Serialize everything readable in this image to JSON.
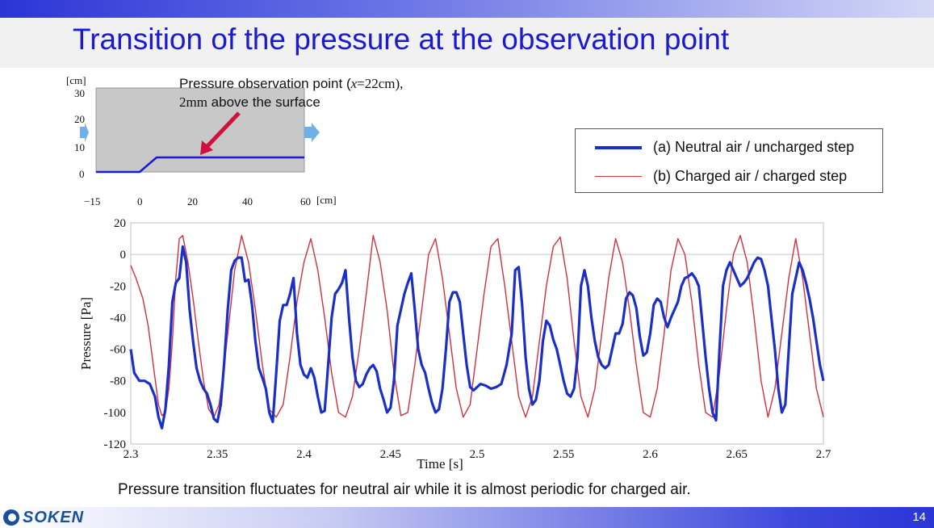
{
  "slide": {
    "title": "Transition of the pressure at the observation point",
    "caption": "Pressure transition fluctuates for neutral air while it is almost periodic for charged air.",
    "page_number": "14",
    "logo_text": "SOKEN"
  },
  "inset": {
    "unit_top": "[cm]",
    "unit_right": "[cm]",
    "y_ticks": [
      "30",
      "20",
      "10",
      "0"
    ],
    "x_ticks": [
      "−15",
      "0",
      "20",
      "40",
      "60"
    ],
    "annotation_line1_a": "Pressure observation point (",
    "annotation_line1_x": "x",
    "annotation_line1_b": "=22cm),",
    "annotation_line2_a": "2mm",
    "annotation_line2_b": " above the surface",
    "colors": {
      "domain": "#c8c8c8",
      "surface": "#1a1ad0",
      "arrow": "#d01040",
      "flow": "#6fb0e8"
    }
  },
  "legend": {
    "items": [
      {
        "label": "(a) Neutral air / uncharged step",
        "color": "#1a2fc8"
      },
      {
        "label": "(b) Charged air / charged step",
        "color": "#d03040"
      }
    ]
  },
  "chart_data": {
    "type": "line",
    "xlabel": "Time [s]",
    "ylabel": "Pressure [Pa]",
    "xlim": [
      2.3,
      2.7
    ],
    "ylim": [
      -120,
      20
    ],
    "x_ticks": [
      "2.3",
      "2.35",
      "2.4",
      "2.45",
      "2.5",
      "2.55",
      "2.6",
      "2.65",
      "2.7"
    ],
    "y_ticks": [
      "20",
      "0",
      "-20",
      "-40",
      "-60",
      "-80",
      "-100",
      "-120"
    ],
    "grid": "horizontal line at 0",
    "series": [
      {
        "name": "(a) Neutral air / uncharged step",
        "color": "#1a2fc8",
        "x": [
          2.3,
          2.302,
          2.305,
          2.308,
          2.311,
          2.314,
          2.316,
          2.318,
          2.32,
          2.322,
          2.324,
          2.326,
          2.328,
          2.33,
          2.332,
          2.334,
          2.336,
          2.338,
          2.34,
          2.342,
          2.344,
          2.346,
          2.348,
          2.35,
          2.352,
          2.354,
          2.356,
          2.358,
          2.36,
          2.362,
          2.364,
          2.366,
          2.368,
          2.37,
          2.372,
          2.374,
          2.376,
          2.378,
          2.38,
          2.382,
          2.384,
          2.386,
          2.388,
          2.39,
          2.392,
          2.394,
          2.396,
          2.398,
          2.4,
          2.402,
          2.404,
          2.406,
          2.408,
          2.41,
          2.412,
          2.414,
          2.416,
          2.418,
          2.42,
          2.422,
          2.424,
          2.426,
          2.428,
          2.43,
          2.432,
          2.434,
          2.436,
          2.438,
          2.44,
          2.442,
          2.444,
          2.446,
          2.448,
          2.45,
          2.452,
          2.454,
          2.456,
          2.458,
          2.46,
          2.462,
          2.464,
          2.466,
          2.468,
          2.47,
          2.472,
          2.474,
          2.476,
          2.478,
          2.48,
          2.482,
          2.484,
          2.486,
          2.488,
          2.49,
          2.492,
          2.494,
          2.496,
          2.498,
          2.5,
          2.502,
          2.505,
          2.508,
          2.511,
          2.514,
          2.517,
          2.52,
          2.522,
          2.524,
          2.526,
          2.528,
          2.53,
          2.532,
          2.534,
          2.536,
          2.538,
          2.54,
          2.542,
          2.544,
          2.546,
          2.548,
          2.55,
          2.552,
          2.554,
          2.556,
          2.558,
          2.56,
          2.562,
          2.564,
          2.566,
          2.568,
          2.57,
          2.572,
          2.574,
          2.576,
          2.578,
          2.58,
          2.582,
          2.584,
          2.586,
          2.588,
          2.59,
          2.592,
          2.594,
          2.596,
          2.598,
          2.6,
          2.602,
          2.604,
          2.606,
          2.608,
          2.61,
          2.612,
          2.614,
          2.616,
          2.618,
          2.62,
          2.622,
          2.624,
          2.626,
          2.628,
          2.63,
          2.632,
          2.634,
          2.636,
          2.638,
          2.64,
          2.642,
          2.644,
          2.646,
          2.648,
          2.65,
          2.652,
          2.654,
          2.656,
          2.658,
          2.66,
          2.662,
          2.664,
          2.666,
          2.668,
          2.67,
          2.672,
          2.674,
          2.676,
          2.678,
          2.68,
          2.682,
          2.684,
          2.686,
          2.688,
          2.69,
          2.692,
          2.694,
          2.696,
          2.698,
          2.7
        ],
        "y": [
          -60,
          -75,
          -80,
          -80,
          -82,
          -90,
          -103,
          -110,
          -98,
          -70,
          -30,
          -18,
          -15,
          5,
          -5,
          -35,
          -55,
          -72,
          -80,
          -85,
          -88,
          -95,
          -104,
          -106,
          -95,
          -68,
          -35,
          -10,
          -4,
          -2,
          -2,
          -17,
          -16,
          -32,
          -55,
          -72,
          -78,
          -85,
          -100,
          -106,
          -75,
          -42,
          -32,
          -32,
          -25,
          -15,
          -50,
          -70,
          -76,
          -78,
          -72,
          -78,
          -90,
          -100,
          -99,
          -70,
          -40,
          -25,
          -22,
          -18,
          -10,
          -40,
          -65,
          -80,
          -84,
          -82,
          -76,
          -72,
          -70,
          -74,
          -85,
          -92,
          -100,
          -97,
          -80,
          -45,
          -35,
          -25,
          -18,
          -12,
          -35,
          -60,
          -70,
          -75,
          -85,
          -94,
          -100,
          -98,
          -85,
          -60,
          -30,
          -24,
          -24,
          -30,
          -50,
          -70,
          -84,
          -86,
          -84,
          -82,
          -83,
          -85,
          -84,
          -82,
          -70,
          -50,
          -10,
          -8,
          -32,
          -65,
          -85,
          -95,
          -92,
          -80,
          -55,
          -42,
          -45,
          -54,
          -60,
          -70,
          -80,
          -88,
          -90,
          -85,
          -65,
          -20,
          -10,
          -20,
          -40,
          -55,
          -65,
          -70,
          -72,
          -70,
          -60,
          -50,
          -50,
          -44,
          -28,
          -24,
          -26,
          -34,
          -52,
          -64,
          -62,
          -50,
          -32,
          -28,
          -30,
          -40,
          -46,
          -40,
          -35,
          -30,
          -20,
          -15,
          -14,
          -12,
          -15,
          -20,
          -42,
          -65,
          -85,
          -100,
          -105,
          -60,
          -20,
          -10,
          -5,
          -10,
          -15,
          -20,
          -18,
          -15,
          -10,
          -5,
          -2,
          -3,
          -10,
          -20,
          -40,
          -60,
          -85,
          -100,
          -95,
          -60,
          -25,
          -15,
          -5,
          -10,
          -18,
          -28,
          -40,
          -55,
          -70,
          -80
        ]
      },
      {
        "name": "(b) Charged air / charged step",
        "color": "#d03040",
        "x": [
          2.3,
          2.303,
          2.307,
          2.31,
          2.313,
          2.316,
          2.318,
          2.32,
          2.322,
          2.324,
          2.326,
          2.328,
          2.33,
          2.333,
          2.336,
          2.339,
          2.342,
          2.345,
          2.348,
          2.351,
          2.354,
          2.357,
          2.36,
          2.364,
          2.368,
          2.372,
          2.376,
          2.38,
          2.384,
          2.388,
          2.392,
          2.396,
          2.4,
          2.404,
          2.408,
          2.412,
          2.416,
          2.42,
          2.424,
          2.428,
          2.432,
          2.436,
          2.44,
          2.444,
          2.448,
          2.452,
          2.456,
          2.46,
          2.464,
          2.468,
          2.472,
          2.476,
          2.48,
          2.484,
          2.488,
          2.492,
          2.496,
          2.5,
          2.504,
          2.508,
          2.512,
          2.516,
          2.52,
          2.524,
          2.528,
          2.532,
          2.536,
          2.54,
          2.544,
          2.548,
          2.552,
          2.556,
          2.56,
          2.564,
          2.568,
          2.572,
          2.576,
          2.58,
          2.584,
          2.588,
          2.592,
          2.596,
          2.6,
          2.604,
          2.608,
          2.612,
          2.616,
          2.62,
          2.624,
          2.628,
          2.632,
          2.636,
          2.64,
          2.644,
          2.648,
          2.652,
          2.656,
          2.66,
          2.664,
          2.668,
          2.672,
          2.676,
          2.68,
          2.684,
          2.688,
          2.692,
          2.696,
          2.7
        ],
        "y": [
          -7,
          -15,
          -28,
          -45,
          -70,
          -95,
          -102,
          -100,
          -85,
          -55,
          -15,
          10,
          12,
          -5,
          -28,
          -55,
          -80,
          -98,
          -103,
          -95,
          -70,
          -40,
          -10,
          12,
          -5,
          -35,
          -70,
          -98,
          -103,
          -95,
          -65,
          -30,
          -5,
          10,
          -10,
          -40,
          -75,
          -100,
          -103,
          -90,
          -60,
          -25,
          12,
          -5,
          -35,
          -75,
          -102,
          -100,
          -70,
          -35,
          0,
          10,
          -15,
          -50,
          -85,
          -103,
          -95,
          -60,
          -25,
          5,
          10,
          -20,
          -55,
          -90,
          -103,
          -90,
          -55,
          -20,
          5,
          11,
          -15,
          -55,
          -90,
          -103,
          -85,
          -50,
          -15,
          10,
          -5,
          -35,
          -70,
          -100,
          -103,
          -85,
          -50,
          -10,
          10,
          0,
          -30,
          -70,
          -100,
          -103,
          -75,
          -35,
          0,
          12,
          -5,
          -40,
          -80,
          -103,
          -85,
          -50,
          -15,
          10,
          -15,
          -50,
          -85,
          -103
        ]
      }
    ]
  }
}
